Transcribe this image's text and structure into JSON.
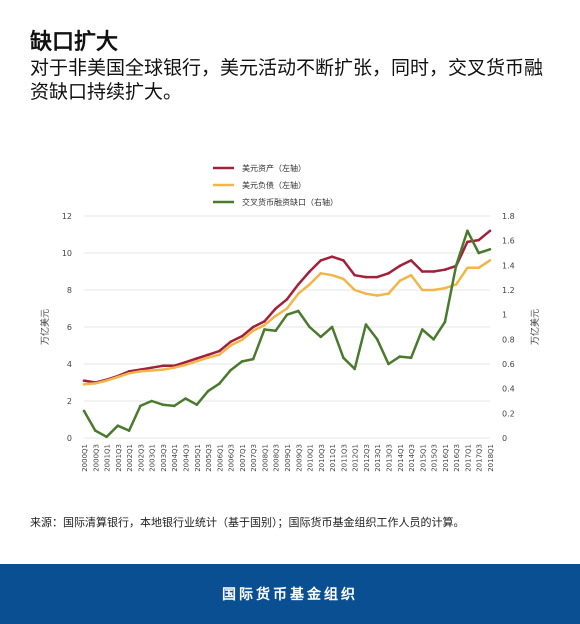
{
  "header": {
    "title": "缺口扩大",
    "subtitle": "对于非美国全球银行，美元活动不断扩张，同时，交叉货币融资缺口持续扩大。"
  },
  "source_note": "来源：国际清算银行，本地银行业统计（基于国别）；国际货币基金组织工作人员的计算。",
  "footer": {
    "org": "国际货币基金组织"
  },
  "colors": {
    "assets": "#a3203a",
    "liabilities": "#f0b64a",
    "gap": "#4a7a2e",
    "footer_bg": "#0b4f93"
  },
  "chart_data": {
    "type": "line",
    "x": [
      "2000Q1",
      "2000Q3",
      "2001Q1",
      "2001Q3",
      "2002Q1",
      "2002Q3",
      "2003Q1",
      "2003Q3",
      "2004Q1",
      "2004Q3",
      "2005Q1",
      "2005Q3",
      "2006Q1",
      "2006Q3",
      "2007Q1",
      "2007Q3",
      "2008Q1",
      "2008Q3",
      "2009Q1",
      "2009Q3",
      "2010Q1",
      "2010Q3",
      "2011Q1",
      "2011Q3",
      "2012Q1",
      "2012Q3",
      "2013Q1",
      "2013Q3",
      "2014Q1",
      "2014Q3",
      "2015Q1",
      "2015Q3",
      "2016Q1",
      "2016Q3",
      "2017Q1",
      "2017Q3",
      "2018Q1"
    ],
    "series": [
      {
        "name": "美元资产（左轴）",
        "axis": "left",
        "color": "#a3203a",
        "values": [
          3.1,
          3.0,
          3.15,
          3.35,
          3.6,
          3.7,
          3.8,
          3.9,
          3.9,
          4.1,
          4.3,
          4.5,
          4.7,
          5.2,
          5.5,
          6.0,
          6.3,
          7.0,
          7.5,
          8.3,
          9.0,
          9.6,
          9.8,
          9.6,
          8.8,
          8.7,
          8.7,
          8.9,
          9.3,
          9.6,
          9.0,
          9.0,
          9.1,
          9.3,
          10.6,
          10.7,
          11.2
        ]
      },
      {
        "name": "美元负债（左轴）",
        "axis": "left",
        "color": "#f0b64a",
        "values": [
          2.9,
          2.95,
          3.1,
          3.3,
          3.5,
          3.6,
          3.65,
          3.7,
          3.8,
          3.95,
          4.15,
          4.35,
          4.5,
          5.0,
          5.3,
          5.8,
          6.1,
          6.6,
          7.0,
          7.8,
          8.3,
          8.9,
          8.8,
          8.6,
          8.0,
          7.8,
          7.7,
          7.8,
          8.5,
          8.8,
          8.0,
          8.0,
          8.1,
          8.3,
          9.2,
          9.2,
          9.6
        ]
      },
      {
        "name": "交叉货币融资缺口（右轴）",
        "axis": "right",
        "color": "#4a7a2e",
        "values": [
          0.22,
          0.06,
          0.01,
          0.1,
          0.06,
          0.26,
          0.3,
          0.27,
          0.26,
          0.32,
          0.27,
          0.38,
          0.44,
          0.55,
          0.62,
          0.64,
          0.88,
          0.87,
          1.0,
          1.03,
          0.9,
          0.82,
          0.9,
          0.65,
          0.56,
          0.92,
          0.8,
          0.6,
          0.66,
          0.65,
          0.88,
          0.8,
          0.94,
          1.4,
          1.68,
          1.5,
          1.53
        ]
      }
    ],
    "y_left": {
      "label": "万亿美元",
      "lim": [
        0,
        12
      ],
      "ticks": [
        0,
        2,
        4,
        6,
        8,
        10,
        12
      ]
    },
    "y_right": {
      "label": "万亿美元",
      "lim": [
        0,
        1.8
      ],
      "ticks": [
        0,
        0.2,
        0.4,
        0.6,
        0.8,
        1,
        1.2,
        1.4,
        1.6,
        1.8
      ]
    },
    "legend_position": "top-left",
    "grid": true
  }
}
